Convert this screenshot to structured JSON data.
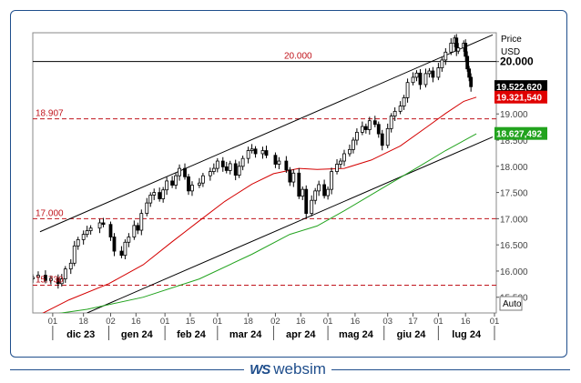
{
  "chart_data": {
    "type": "candlestick",
    "y_axis": {
      "title": "Price",
      "unit": "USD",
      "ticks": [
        "15.500",
        "16.000",
        "16.500",
        "17.000",
        "17.500",
        "18.000",
        "18.500",
        "19.000",
        "20.000"
      ],
      "tick_values": [
        15500,
        16000,
        16500,
        17000,
        17500,
        18000,
        18500,
        19000,
        20000
      ],
      "range": [
        15200,
        20550
      ],
      "auto_label": "Auto"
    },
    "x_axis": {
      "day_ticks": [
        "01",
        "18",
        "02",
        "16",
        "01",
        "15",
        "01",
        "18",
        "02",
        "16",
        "01",
        "16",
        "03",
        "17",
        "01",
        "16",
        "01"
      ],
      "month_labels": [
        "dic 23",
        "gen 24",
        "feb 24",
        "mar 24",
        "apr 24",
        "mag 24",
        "giu 24",
        "lug 24"
      ],
      "range": [
        "2023-11-20",
        "2024-08-02"
      ]
    },
    "price_labels": [
      {
        "text": "19.522,620",
        "value": 19522.62,
        "color": "#000000"
      },
      {
        "text": "19.321,540",
        "value": 19321.54,
        "color": "#e00000"
      },
      {
        "text": "18.627,492",
        "value": 18627.492,
        "color": "#22a31e"
      }
    ],
    "levels": [
      {
        "label": "20.000",
        "value": 20000,
        "style": "solid",
        "color": "#000000"
      },
      {
        "label": "18.907",
        "value": 18907,
        "style": "dashed",
        "color": "#c0141c"
      },
      {
        "label": "17.000",
        "value": 17000,
        "style": "dashed",
        "color": "#c0141c"
      },
      {
        "label": "15.730",
        "value": 15730,
        "style": "dashed",
        "color": "#c0141c"
      }
    ],
    "channel": [
      {
        "name": "upper",
        "points": [
          [
            "2023-11-24",
            16750
          ],
          [
            "2024-07-31",
            20510
          ]
        ]
      },
      {
        "name": "lower",
        "points": [
          [
            "2023-12-20",
            15200
          ],
          [
            "2024-07-31",
            18560
          ]
        ]
      }
    ],
    "series": [
      {
        "type": "line",
        "color": "#d40000",
        "points": [
          [
            "2023-11-20",
            15100
          ],
          [
            "2023-12-10",
            15450
          ],
          [
            "2024-01-01",
            15760
          ],
          [
            "2024-01-20",
            16120
          ],
          [
            "2024-02-05",
            16560
          ],
          [
            "2024-02-20",
            16960
          ],
          [
            "2024-03-05",
            17330
          ],
          [
            "2024-03-20",
            17660
          ],
          [
            "2024-04-01",
            17860
          ],
          [
            "2024-04-15",
            17960
          ],
          [
            "2024-04-25",
            17940
          ],
          [
            "2024-05-10",
            17960
          ],
          [
            "2024-05-25",
            18120
          ],
          [
            "2024-06-10",
            18390
          ],
          [
            "2024-06-25",
            18760
          ],
          [
            "2024-07-05",
            19010
          ],
          [
            "2024-07-15",
            19240
          ],
          [
            "2024-07-22",
            19320
          ]
        ]
      },
      {
        "type": "line",
        "color": "#22a31e",
        "points": [
          [
            "2023-11-20",
            15120
          ],
          [
            "2023-12-20",
            15270
          ],
          [
            "2024-01-20",
            15500
          ],
          [
            "2024-02-20",
            15850
          ],
          [
            "2024-03-20",
            16320
          ],
          [
            "2024-04-10",
            16700
          ],
          [
            "2024-04-25",
            16860
          ],
          [
            "2024-05-10",
            17150
          ],
          [
            "2024-05-30",
            17560
          ],
          [
            "2024-06-20",
            17990
          ],
          [
            "2024-07-05",
            18300
          ],
          [
            "2024-07-22",
            18620
          ]
        ]
      }
    ],
    "candles_close": [
      [
        "2023-11-20",
        15880
      ],
      [
        "2023-11-23",
        15920
      ],
      [
        "2023-11-27",
        15820
      ],
      [
        "2023-11-30",
        15860
      ],
      [
        "2023-12-04",
        15760
      ],
      [
        "2023-12-06",
        15850
      ],
      [
        "2023-12-08",
        16040
      ],
      [
        "2023-12-11",
        16150
      ],
      [
        "2023-12-13",
        16480
      ],
      [
        "2023-12-15",
        16600
      ],
      [
        "2023-12-18",
        16700
      ],
      [
        "2023-12-20",
        16770
      ],
      [
        "2023-12-22",
        16820
      ],
      [
        "2023-12-27",
        16920
      ],
      [
        "2023-12-29",
        16890
      ],
      [
        "2024-01-02",
        16650
      ],
      [
        "2024-01-04",
        16380
      ],
      [
        "2024-01-08",
        16300
      ],
      [
        "2024-01-10",
        16550
      ],
      [
        "2024-01-12",
        16650
      ],
      [
        "2024-01-15",
        16870
      ],
      [
        "2024-01-17",
        16780
      ],
      [
        "2024-01-19",
        17100
      ],
      [
        "2024-01-22",
        17300
      ],
      [
        "2024-01-24",
        17450
      ],
      [
        "2024-01-26",
        17500
      ],
      [
        "2024-01-29",
        17380
      ],
      [
        "2024-01-31",
        17550
      ],
      [
        "2024-02-02",
        17720
      ],
      [
        "2024-02-05",
        17640
      ],
      [
        "2024-02-07",
        17820
      ],
      [
        "2024-02-09",
        17960
      ],
      [
        "2024-02-12",
        17800
      ],
      [
        "2024-02-14",
        17530
      ],
      [
        "2024-02-16",
        17640
      ],
      [
        "2024-02-20",
        17680
      ],
      [
        "2024-02-22",
        17820
      ],
      [
        "2024-02-26",
        17900
      ],
      [
        "2024-02-28",
        17960
      ],
      [
        "2024-03-01",
        18100
      ],
      [
        "2024-03-04",
        17990
      ],
      [
        "2024-03-06",
        17920
      ],
      [
        "2024-03-08",
        18050
      ],
      [
        "2024-03-11",
        17830
      ],
      [
        "2024-03-13",
        18000
      ],
      [
        "2024-03-15",
        18150
      ],
      [
        "2024-03-18",
        18300
      ],
      [
        "2024-03-20",
        18330
      ],
      [
        "2024-03-22",
        18240
      ],
      [
        "2024-03-26",
        18300
      ],
      [
        "2024-03-28",
        18210
      ],
      [
        "2024-04-02",
        18040
      ],
      [
        "2024-04-04",
        18100
      ],
      [
        "2024-04-08",
        17930
      ],
      [
        "2024-04-10",
        17700
      ],
      [
        "2024-04-12",
        17870
      ],
      [
        "2024-04-15",
        17430
      ],
      [
        "2024-04-17",
        17560
      ],
      [
        "2024-04-19",
        17100
      ],
      [
        "2024-04-22",
        17350
      ],
      [
        "2024-04-24",
        17530
      ],
      [
        "2024-04-26",
        17650
      ],
      [
        "2024-04-29",
        17440
      ],
      [
        "2024-05-01",
        17560
      ],
      [
        "2024-05-03",
        17900
      ],
      [
        "2024-05-06",
        18040
      ],
      [
        "2024-05-08",
        18100
      ],
      [
        "2024-05-10",
        18240
      ],
      [
        "2024-05-13",
        18320
      ],
      [
        "2024-05-15",
        18500
      ],
      [
        "2024-05-17",
        18650
      ],
      [
        "2024-05-20",
        18760
      ],
      [
        "2024-05-22",
        18700
      ],
      [
        "2024-05-24",
        18870
      ],
      [
        "2024-05-27",
        18800
      ],
      [
        "2024-05-29",
        18620
      ],
      [
        "2024-05-31",
        18400
      ],
      [
        "2024-06-03",
        18720
      ],
      [
        "2024-06-05",
        18960
      ],
      [
        "2024-06-07",
        19050
      ],
      [
        "2024-06-10",
        19150
      ],
      [
        "2024-06-12",
        19310
      ],
      [
        "2024-06-14",
        19600
      ],
      [
        "2024-06-17",
        19700
      ],
      [
        "2024-06-19",
        19780
      ],
      [
        "2024-06-21",
        19560
      ],
      [
        "2024-06-24",
        19770
      ],
      [
        "2024-06-26",
        19820
      ],
      [
        "2024-06-28",
        19700
      ],
      [
        "2024-07-01",
        19880
      ],
      [
        "2024-07-03",
        20030
      ],
      [
        "2024-07-05",
        20180
      ],
      [
        "2024-07-08",
        20350
      ],
      [
        "2024-07-10",
        20450
      ],
      [
        "2024-07-11",
        20200
      ],
      [
        "2024-07-12",
        20260
      ],
      [
        "2024-07-15",
        20350
      ],
      [
        "2024-07-16",
        20100
      ],
      [
        "2024-07-17",
        19860
      ],
      [
        "2024-07-18",
        19700
      ],
      [
        "2024-07-19",
        19520
      ]
    ]
  },
  "brand": {
    "logo": "WS",
    "name": "websim"
  }
}
